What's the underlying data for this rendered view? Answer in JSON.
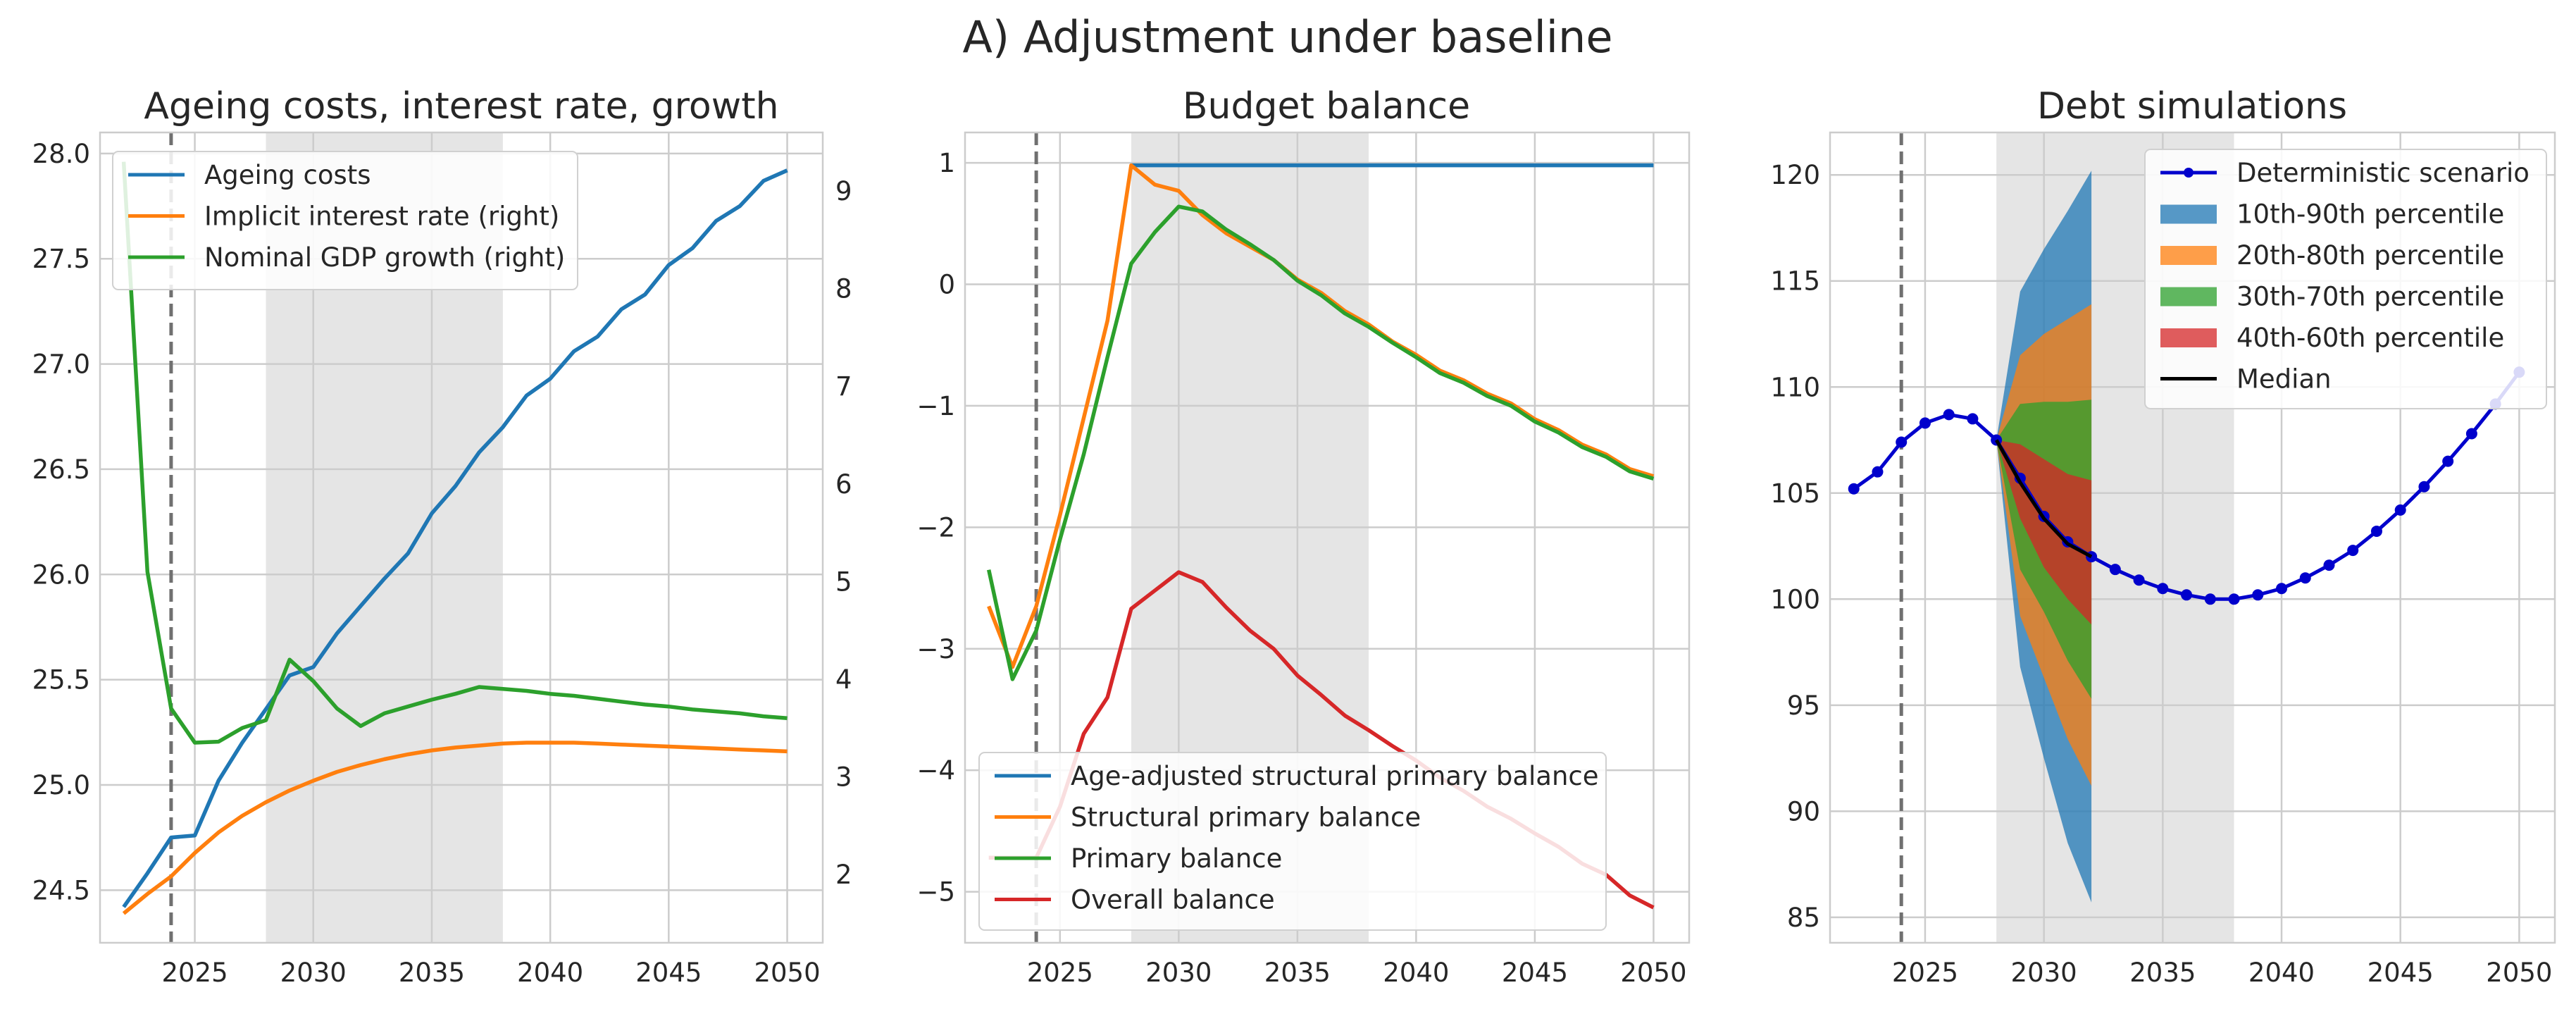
{
  "figure": {
    "title": "A) Adjustment under baseline"
  },
  "colors": {
    "blue": "#1f77b4",
    "orange": "#ff7f0e",
    "green": "#2ca02c",
    "red": "#d62728",
    "black": "#000000",
    "det": "#0000cc",
    "shade": "#e5e5e5",
    "grid": "#cccccc",
    "spine": "#cccccc",
    "vline": "#707070",
    "band1": "#1f77b4",
    "band2": "#ff7f0e",
    "band3": "#2ca02c",
    "band4": "#d62728"
  },
  "chart_data": [
    {
      "type": "line",
      "title": "Ageing costs, interest rate, growth",
      "xlim": [
        2021,
        2051.5
      ],
      "ylim": [
        24.25,
        28.1
      ],
      "y2lim": [
        1.3,
        9.6
      ],
      "xticks": [
        2025,
        2030,
        2035,
        2040,
        2045,
        2050
      ],
      "yticks": [
        "24.5",
        "25.0",
        "25.5",
        "26.0",
        "26.5",
        "27.0",
        "27.5",
        "28.0"
      ],
      "y2ticks": [
        "2",
        "3",
        "4",
        "5",
        "6",
        "7",
        "8",
        "9"
      ],
      "shaded_range": [
        2028,
        2038
      ],
      "vline": 2024,
      "grid": true,
      "legend_position": "top-left",
      "x": [
        2022,
        2023,
        2024,
        2025,
        2026,
        2027,
        2028,
        2029,
        2030,
        2031,
        2032,
        2033,
        2034,
        2035,
        2036,
        2037,
        2038,
        2039,
        2040,
        2041,
        2042,
        2043,
        2044,
        2045,
        2046,
        2047,
        2048,
        2049,
        2050
      ],
      "series": [
        {
          "name": "Ageing costs",
          "axis": "left",
          "color": "blue",
          "values": [
            24.42,
            24.58,
            24.75,
            24.76,
            25.02,
            25.2,
            25.36,
            25.52,
            25.56,
            25.72,
            25.85,
            25.98,
            26.1,
            26.29,
            26.42,
            26.58,
            26.7,
            26.85,
            26.93,
            27.06,
            27.13,
            27.26,
            27.33,
            27.47,
            27.55,
            27.68,
            27.75,
            27.87,
            27.92
          ]
        },
        {
          "name": "Implicit interest rate (right)",
          "axis": "right",
          "color": "orange",
          "values": [
            1.6,
            1.8,
            1.98,
            2.22,
            2.43,
            2.6,
            2.74,
            2.86,
            2.96,
            3.05,
            3.12,
            3.18,
            3.23,
            3.27,
            3.3,
            3.32,
            3.34,
            3.35,
            3.35,
            3.35,
            3.34,
            3.33,
            3.32,
            3.31,
            3.3,
            3.29,
            3.28,
            3.27,
            3.26
          ]
        },
        {
          "name": "Nominal GDP growth (right)",
          "axis": "right",
          "color": "green",
          "values": [
            9.3,
            5.1,
            3.7,
            3.35,
            3.36,
            3.5,
            3.58,
            4.2,
            3.98,
            3.7,
            3.52,
            3.65,
            3.72,
            3.79,
            3.85,
            3.92,
            3.9,
            3.88,
            3.85,
            3.83,
            3.8,
            3.77,
            3.74,
            3.72,
            3.69,
            3.67,
            3.65,
            3.62,
            3.6
          ]
        }
      ]
    },
    {
      "type": "line",
      "title": "Budget balance",
      "xlim": [
        2021,
        2051.5
      ],
      "ylim": [
        -5.42,
        1.25
      ],
      "xticks": [
        2025,
        2030,
        2035,
        2040,
        2045,
        2050
      ],
      "yticks": [
        "−5",
        "−4",
        "−3",
        "−2",
        "−1",
        "0",
        "1"
      ],
      "shaded_range": [
        2028,
        2038
      ],
      "vline": 2024,
      "grid": true,
      "legend_position": "bottom-left",
      "x": [
        2022,
        2023,
        2024,
        2025,
        2026,
        2027,
        2028,
        2029,
        2030,
        2031,
        2032,
        2033,
        2034,
        2035,
        2036,
        2037,
        2038,
        2039,
        2040,
        2041,
        2042,
        2043,
        2044,
        2045,
        2046,
        2047,
        2048,
        2049,
        2050
      ],
      "series": [
        {
          "name": "Age-adjusted structural primary balance",
          "color": "blue",
          "x": [
            2028,
            2050
          ],
          "values": [
            0.98,
            0.98
          ]
        },
        {
          "name": "Structural primary balance",
          "color": "orange",
          "values": [
            -2.65,
            -3.15,
            -2.65,
            -1.9,
            -1.1,
            -0.3,
            0.98,
            0.82,
            0.77,
            0.57,
            0.42,
            0.31,
            0.2,
            0.04,
            -0.07,
            -0.22,
            -0.33,
            -0.47,
            -0.58,
            -0.71,
            -0.79,
            -0.9,
            -0.98,
            -1.11,
            -1.2,
            -1.32,
            -1.4,
            -1.52,
            -1.58
          ]
        },
        {
          "name": "Primary balance",
          "color": "green",
          "values": [
            -2.35,
            -3.25,
            -2.85,
            -2.1,
            -1.4,
            -0.6,
            0.17,
            0.43,
            0.64,
            0.6,
            0.45,
            0.33,
            0.2,
            0.03,
            -0.09,
            -0.24,
            -0.35,
            -0.48,
            -0.6,
            -0.73,
            -0.81,
            -0.92,
            -1.0,
            -1.13,
            -1.22,
            -1.34,
            -1.42,
            -1.54,
            -1.6
          ]
        },
        {
          "name": "Overall balance",
          "color": "red",
          "values": [
            -4.72,
            -4.72,
            -4.72,
            -4.3,
            -3.7,
            -3.4,
            -2.67,
            -2.52,
            -2.37,
            -2.45,
            -2.66,
            -2.85,
            -3.0,
            -3.22,
            -3.38,
            -3.55,
            -3.67,
            -3.8,
            -3.92,
            -4.06,
            -4.17,
            -4.3,
            -4.4,
            -4.52,
            -4.63,
            -4.77,
            -4.86,
            -5.03,
            -5.13
          ]
        }
      ]
    },
    {
      "type": "area",
      "title": "Debt simulations",
      "xlim": [
        2021,
        2051.5
      ],
      "ylim": [
        83.8,
        122
      ],
      "xticks": [
        2025,
        2030,
        2035,
        2040,
        2045,
        2050
      ],
      "yticks": [
        "85",
        "90",
        "95",
        "100",
        "105",
        "110",
        "115",
        "120"
      ],
      "shaded_range": [
        2028,
        2038
      ],
      "vline": 2024,
      "grid": true,
      "legend_position": "top-right",
      "deterministic": {
        "name": "Deterministic scenario",
        "color": "det",
        "x": [
          2022,
          2023,
          2024,
          2025,
          2026,
          2027,
          2028,
          2029,
          2030,
          2031,
          2032,
          2033,
          2034,
          2035,
          2036,
          2037,
          2038,
          2039,
          2040,
          2041,
          2042,
          2043,
          2044,
          2045,
          2046,
          2047,
          2048,
          2049,
          2050
        ],
        "values": [
          105.2,
          106.0,
          107.4,
          108.3,
          108.7,
          108.5,
          107.5,
          105.7,
          103.9,
          102.7,
          102.0,
          101.4,
          100.9,
          100.5,
          100.2,
          100.0,
          100.0,
          100.2,
          100.5,
          101.0,
          101.6,
          102.3,
          103.2,
          104.2,
          105.3,
          106.5,
          107.8,
          109.2,
          110.7
        ]
      },
      "fan_x": [
        2028,
        2029,
        2030,
        2031,
        2032
      ],
      "bands": [
        {
          "name": "10th-90th percentile",
          "color": "band1",
          "upper": [
            107.5,
            114.5,
            116.5,
            118.3,
            120.2
          ],
          "lower": [
            107.5,
            96.8,
            92.5,
            88.5,
            85.7
          ]
        },
        {
          "name": "20th-80th percentile",
          "color": "band2",
          "upper": [
            107.5,
            111.5,
            112.5,
            113.2,
            113.9
          ],
          "lower": [
            107.5,
            99.2,
            96.3,
            93.4,
            91.2
          ]
        },
        {
          "name": "30th-70th percentile",
          "color": "band3",
          "upper": [
            107.5,
            109.2,
            109.3,
            109.3,
            109.4
          ],
          "lower": [
            107.5,
            101.4,
            99.4,
            97.1,
            95.3
          ]
        },
        {
          "name": "40th-60th percentile",
          "color": "band4",
          "upper": [
            107.5,
            107.3,
            106.6,
            105.9,
            105.6
          ],
          "lower": [
            107.5,
            103.8,
            101.5,
            100.0,
            98.8
          ]
        }
      ],
      "median": {
        "name": "Median",
        "color": "black",
        "values": [
          107.5,
          105.5,
          103.8,
          102.6,
          102.0
        ]
      }
    }
  ]
}
